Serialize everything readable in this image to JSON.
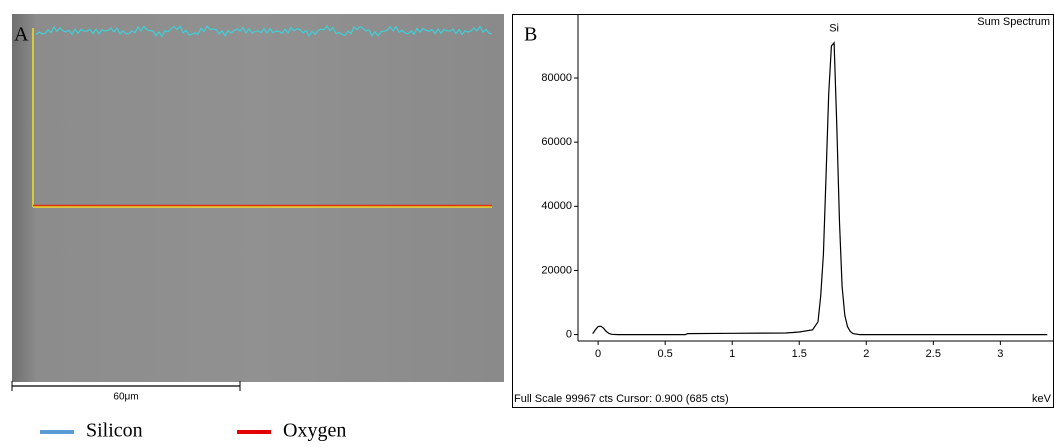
{
  "panel_a": {
    "label": "A",
    "scale_bar": "60μm",
    "legend": [
      {
        "name": "Silicon",
        "color": "#5b9bd5"
      },
      {
        "name": "Oxygen",
        "color": "#e00000"
      }
    ]
  },
  "chart_data": {
    "type": "line",
    "panel_label": "B",
    "title": "Sum Spectrum",
    "peak_label": "Si",
    "x_unit": "keV",
    "footer": "Full Scale 99967 cts Cursor: 0.900  (685 cts)",
    "x": [
      -0.04,
      -0.02,
      0.0,
      0.02,
      0.04,
      0.06,
      0.08,
      0.1,
      0.15,
      0.65,
      0.67,
      1.0,
      1.4,
      1.5,
      1.6,
      1.64,
      1.66,
      1.68,
      1.7,
      1.72,
      1.74,
      1.76,
      1.78,
      1.8,
      1.82,
      1.84,
      1.86,
      1.88,
      1.9,
      1.95,
      3.35
    ],
    "values": [
      300,
      1500,
      2500,
      2600,
      2000,
      1000,
      400,
      100,
      0,
      0,
      300,
      400,
      500,
      800,
      1500,
      4000,
      12000,
      25000,
      50000,
      75000,
      90000,
      91000,
      65000,
      35000,
      15000,
      6000,
      2500,
      1000,
      300,
      0,
      0
    ],
    "color": "#000000",
    "xlim": [
      -0.15,
      3.4
    ],
    "ylim": [
      -2000,
      99967
    ],
    "xticks": [
      0,
      0.5,
      1,
      1.5,
      2,
      2.5,
      3
    ],
    "yticks": [
      0,
      20000,
      40000,
      60000,
      80000
    ]
  }
}
